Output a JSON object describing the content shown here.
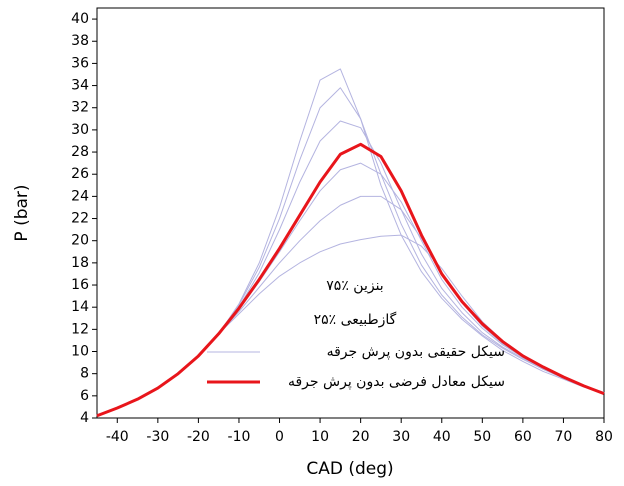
{
  "chart_data": {
    "type": "line",
    "x_label": "CAD (deg)",
    "y_label": "P (bar)",
    "annotations": [
      "بنزین ٪۷۵",
      "گازطبیعی ٪۲۵"
    ],
    "x": [
      -45,
      -40,
      -35,
      -30,
      -25,
      -20,
      -15,
      -10,
      -5,
      0,
      5,
      10,
      15,
      20,
      25,
      30,
      35,
      40,
      45,
      50,
      55,
      60,
      65,
      70,
      75,
      80
    ],
    "xlim": [
      -45,
      80
    ],
    "xticks": [
      -40,
      -30,
      -20,
      -10,
      0,
      10,
      20,
      30,
      40,
      50,
      60,
      70,
      80
    ],
    "ylim": [
      4,
      41
    ],
    "yticks": [
      4,
      6,
      8,
      10,
      12,
      14,
      16,
      18,
      20,
      22,
      24,
      26,
      28,
      30,
      32,
      34,
      36,
      38,
      40
    ],
    "series": [
      {
        "name": "سیکل حقیقی بدون پرش جرقه",
        "color": "#b4b4e0",
        "width": 1,
        "values": [
          4.2,
          4.9,
          5.7,
          6.7,
          8.0,
          9.6,
          11.6,
          14.3,
          18,
          23,
          29,
          34.5,
          35.5,
          31,
          25,
          20.5,
          17.2,
          14.8,
          12.9,
          11.4,
          10.1,
          9.1,
          8.2,
          7.5,
          6.8,
          6.3
        ]
      },
      {
        "color": "#b4b4e0",
        "width": 1,
        "values": [
          4.2,
          4.9,
          5.7,
          6.7,
          8.0,
          9.6,
          11.6,
          14.2,
          17.6,
          22,
          27.3,
          32,
          33.8,
          31,
          26,
          21.5,
          17.8,
          15.1,
          13.1,
          11.5,
          10.3,
          9.3,
          8.4,
          7.6,
          6.9,
          6.3
        ]
      },
      {
        "color": "#b4b4e0",
        "width": 1,
        "values": [
          4.2,
          4.9,
          5.7,
          6.7,
          8.0,
          9.6,
          11.6,
          14.0,
          17.1,
          21,
          25.3,
          29,
          30.8,
          30.2,
          27,
          22.8,
          18.8,
          15.7,
          13.5,
          11.7,
          10.4,
          9.4,
          8.4,
          7.6,
          6.9,
          6.3
        ]
      },
      {
        "color": "#b4b4e0",
        "width": 1,
        "values": [
          4.2,
          4.9,
          5.7,
          6.7,
          8.0,
          9.6,
          11.6,
          13.8,
          16.3,
          19,
          21.8,
          24.5,
          26.4,
          27,
          26,
          23.5,
          20,
          16.5,
          14,
          12.1,
          10.6,
          9.5,
          8.5,
          7.6,
          6.9,
          6.3
        ]
      },
      {
        "color": "#b4b4e0",
        "width": 1,
        "values": [
          4.2,
          4.9,
          5.7,
          6.7,
          8.0,
          9.6,
          11.6,
          13.6,
          15.8,
          18,
          20,
          21.8,
          23.2,
          24,
          24,
          22.8,
          20.2,
          17,
          14.4,
          12.3,
          10.7,
          9.5,
          8.5,
          7.6,
          6.9,
          6.3
        ]
      },
      {
        "color": "#b4b4e0",
        "width": 1,
        "values": [
          4.2,
          4.9,
          5.7,
          6.7,
          8.0,
          9.6,
          11.6,
          13.4,
          15.2,
          16.8,
          18,
          19,
          19.7,
          20.1,
          20.4,
          20.5,
          19.5,
          17.5,
          15,
          12.7,
          11,
          9.7,
          8.6,
          7.7,
          6.9,
          6.2
        ]
      },
      {
        "name": "سیکل معادل فرضی بدون پرش جرقه",
        "color": "#e8151b",
        "width": 3,
        "values": [
          4.2,
          4.9,
          5.7,
          6.7,
          8.0,
          9.6,
          11.6,
          13.9,
          16.5,
          19.3,
          22.3,
          25.3,
          27.8,
          28.7,
          27.6,
          24.5,
          20.5,
          17.0,
          14.5,
          12.5,
          10.9,
          9.6,
          8.6,
          7.7,
          6.9,
          6.2
        ]
      }
    ]
  }
}
